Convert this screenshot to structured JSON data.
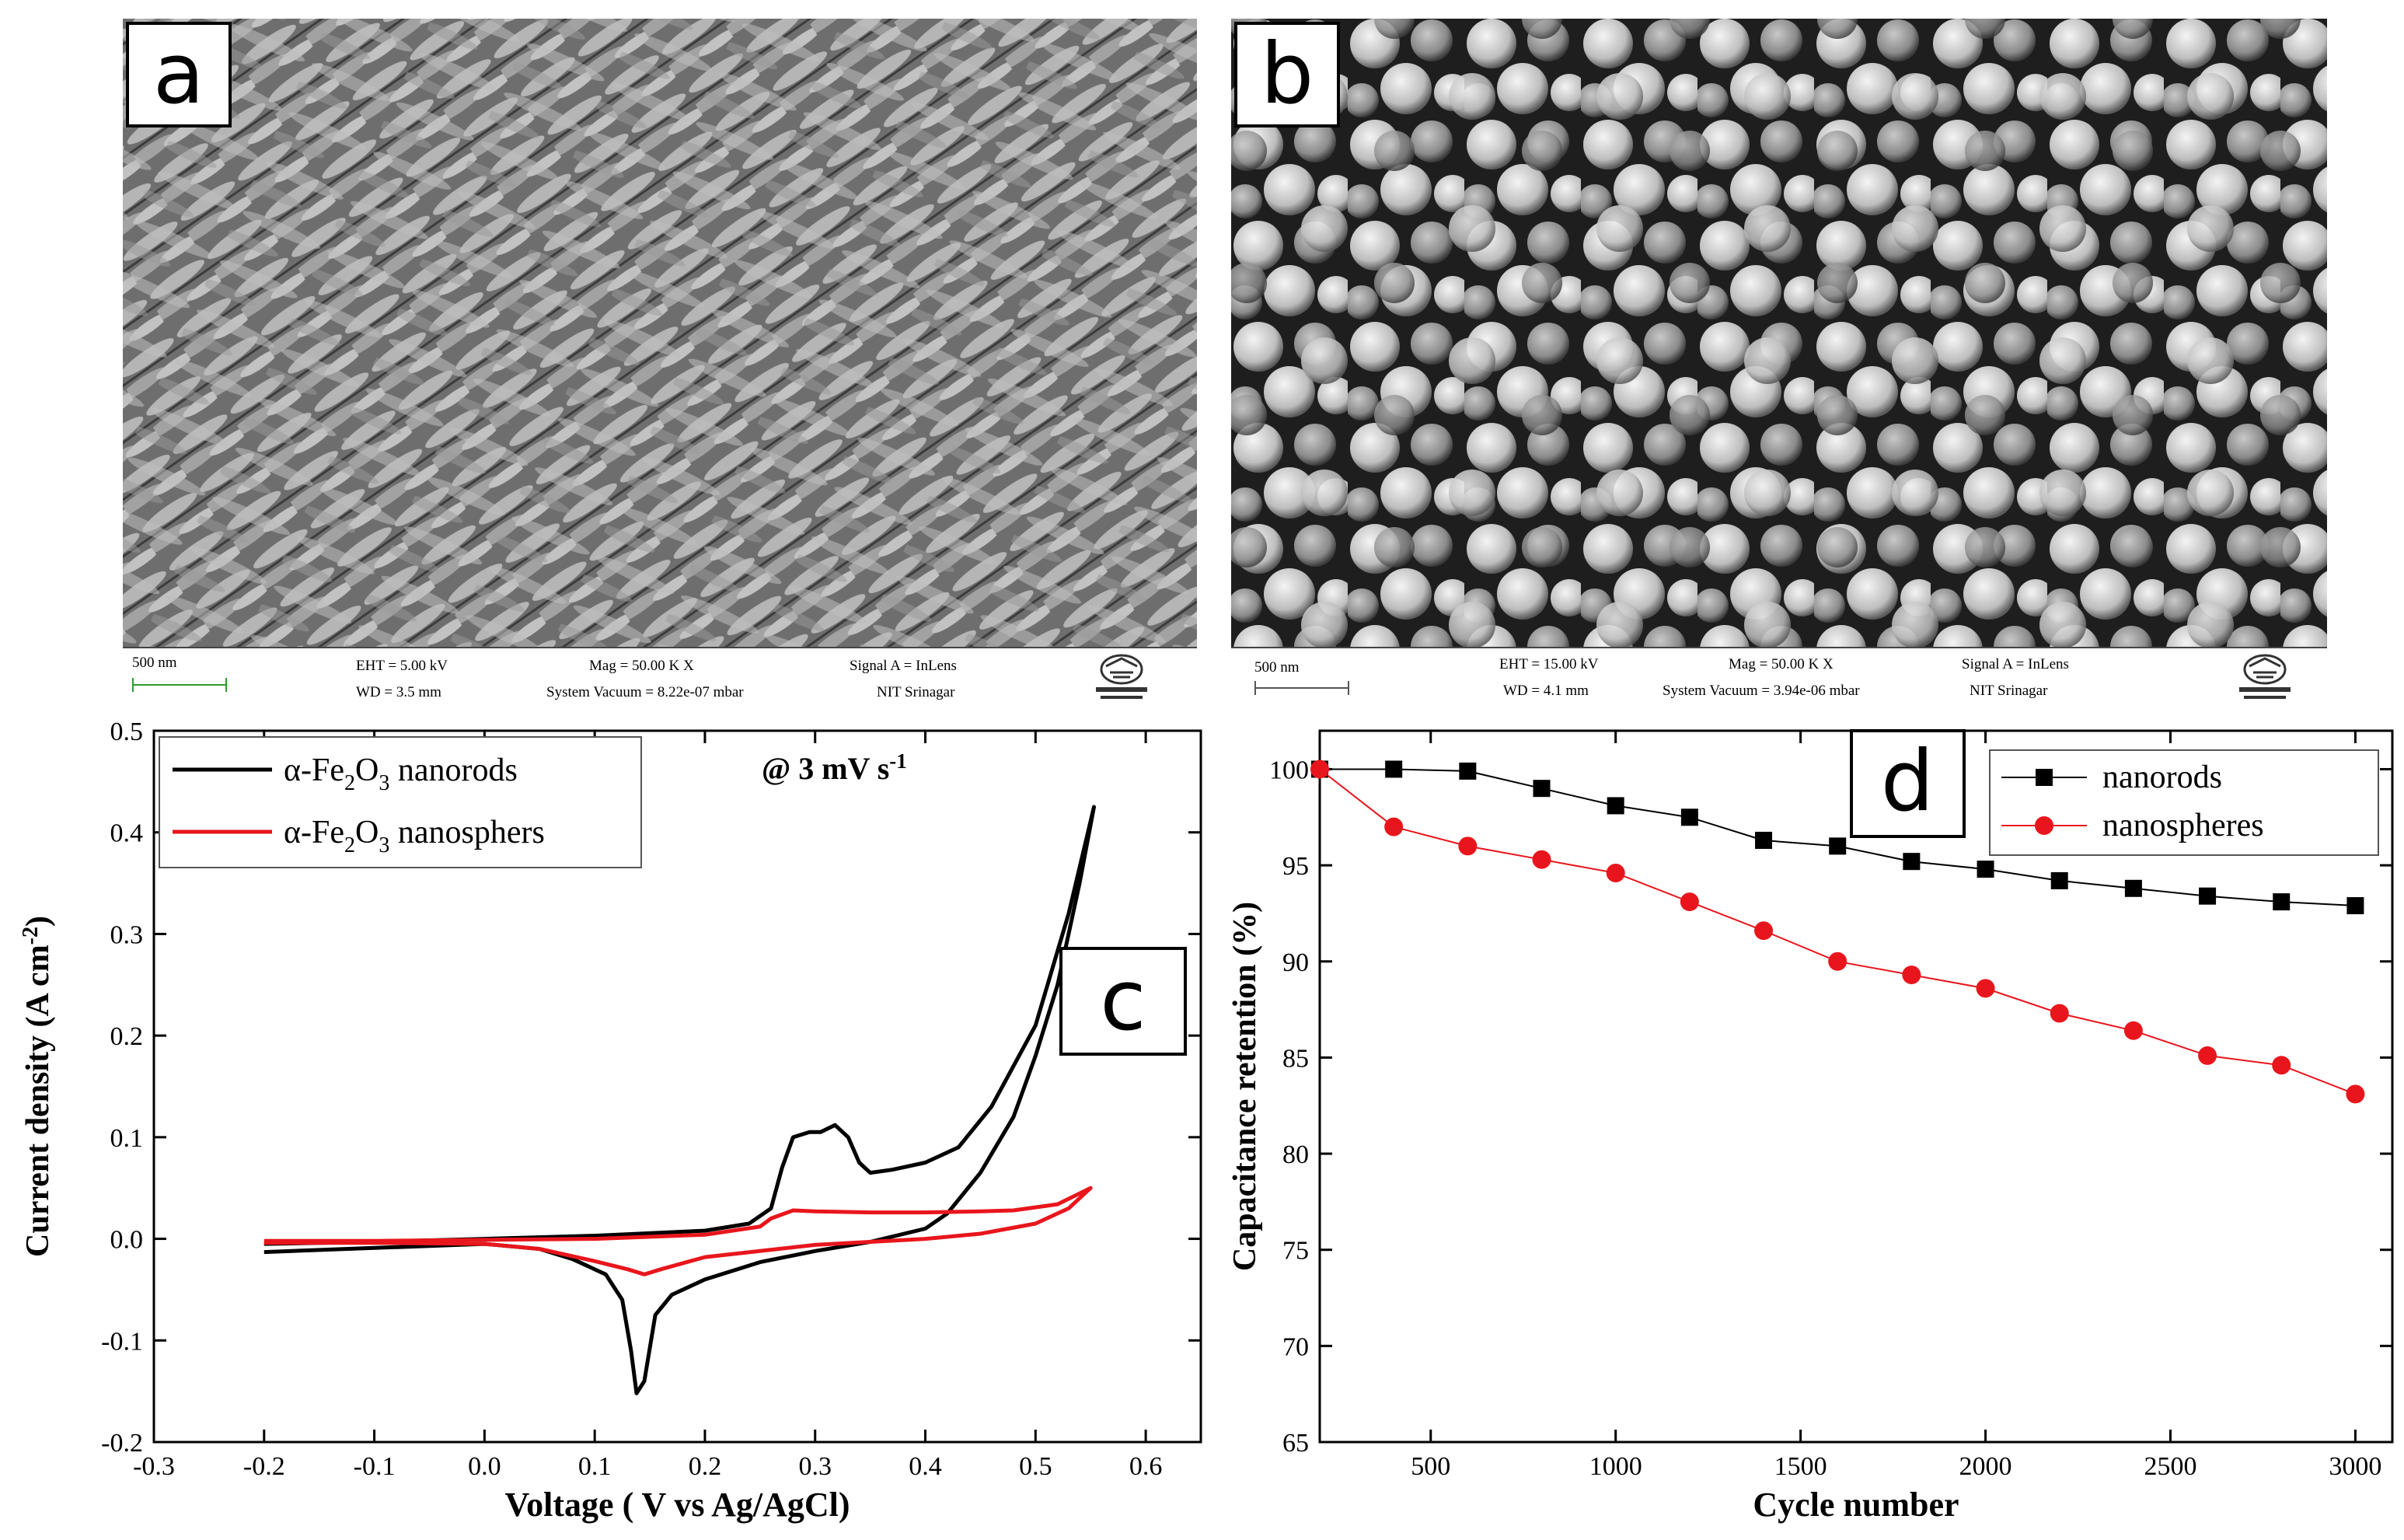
{
  "panels": {
    "a": {
      "label": "a",
      "sem_info": {
        "scale": "500 nm",
        "eht": "EHT =  5.00 kV",
        "wd": "WD =  3.5 mm",
        "mag": "Mag =   50.00 K X",
        "vacuum": "System Vacuum = 8.22e-07 mbar",
        "signal": "Signal A = InLens",
        "institute": "NIT Srinagar"
      }
    },
    "b": {
      "label": "b",
      "sem_info": {
        "scale": "500 nm",
        "eht": "EHT = 15.00 kV",
        "wd": "WD =  4.1 mm",
        "mag": "Mag =   50.00 K X",
        "vacuum": "System Vacuum = 3.94e-06 mbar",
        "signal": "Signal A = InLens",
        "institute": "NIT Srinagar"
      }
    },
    "c": {
      "label": "c",
      "annotation": "@ 3 mV s-1",
      "annotation_main": "@ 3 mV s",
      "annotation_sup": "-1"
    },
    "d": {
      "label": "d"
    }
  },
  "colors": {
    "black_series": "#000000",
    "red_series": "#e8161c"
  },
  "chart_data": [
    {
      "type": "line",
      "panel": "c",
      "xlabel": "Voltage ( V vs Ag/AgCl)",
      "ylabel": "Current density (A cm-2)",
      "ylabel_main": "Current density (A cm",
      "ylabel_sup": "-2",
      "ylabel_end": ")",
      "xlim": [
        -0.3,
        0.65
      ],
      "ylim": [
        -0.2,
        0.5
      ],
      "xticks": [
        -0.3,
        -0.2,
        -0.1,
        0.0,
        0.1,
        0.2,
        0.3,
        0.4,
        0.5,
        0.6
      ],
      "xtick_labels": [
        "-0.3",
        "-0.2",
        "-0.1",
        "0.0",
        "0.1",
        "0.2",
        "0.3",
        "0.4",
        "0.5",
        "0.6"
      ],
      "yticks": [
        -0.2,
        -0.1,
        0.0,
        0.1,
        0.2,
        0.3,
        0.4,
        0.5
      ],
      "ytick_labels": [
        "-0.2",
        "-0.1",
        "0.0",
        "0.1",
        "0.2",
        "0.3",
        "0.4",
        "0.5"
      ],
      "legend_position": "top-left",
      "series": [
        {
          "name": "α-Fe2O3 nanorods",
          "legend_pre": "α-Fe",
          "legend_sub1": "2",
          "legend_mid": "O",
          "legend_sub2": "3",
          "legend_post": " nanorods",
          "color": "#000000",
          "points": [
            [
              -0.2,
              -0.013
            ],
            [
              -0.1,
              -0.009
            ],
            [
              0.0,
              -0.005
            ],
            [
              0.05,
              -0.01
            ],
            [
              0.08,
              -0.02
            ],
            [
              0.11,
              -0.035
            ],
            [
              0.125,
              -0.06
            ],
            [
              0.133,
              -0.11
            ],
            [
              0.138,
              -0.152
            ],
            [
              0.145,
              -0.14
            ],
            [
              0.155,
              -0.075
            ],
            [
              0.17,
              -0.055
            ],
            [
              0.2,
              -0.04
            ],
            [
              0.25,
              -0.023
            ],
            [
              0.3,
              -0.012
            ],
            [
              0.35,
              -0.003
            ],
            [
              0.4,
              0.01
            ],
            [
              0.42,
              0.025
            ],
            [
              0.45,
              0.065
            ],
            [
              0.48,
              0.12
            ],
            [
              0.5,
              0.18
            ],
            [
              0.52,
              0.25
            ],
            [
              0.54,
              0.35
            ],
            [
              0.553,
              0.425
            ],
            [
              0.53,
              0.32
            ],
            [
              0.5,
              0.21
            ],
            [
              0.46,
              0.13
            ],
            [
              0.43,
              0.09
            ],
            [
              0.4,
              0.075
            ],
            [
              0.37,
              0.068
            ],
            [
              0.35,
              0.065
            ],
            [
              0.34,
              0.075
            ],
            [
              0.33,
              0.1
            ],
            [
              0.318,
              0.112
            ],
            [
              0.305,
              0.105
            ],
            [
              0.295,
              0.105
            ],
            [
              0.28,
              0.1
            ],
            [
              0.27,
              0.07
            ],
            [
              0.26,
              0.03
            ],
            [
              0.24,
              0.015
            ],
            [
              0.2,
              0.008
            ],
            [
              0.1,
              0.003
            ],
            [
              0.0,
              0.0
            ],
            [
              -0.1,
              -0.003
            ],
            [
              -0.2,
              -0.005
            ]
          ]
        },
        {
          "name": "α-Fe2O3 nanosphers",
          "legend_pre": "α-Fe",
          "legend_sub1": "2",
          "legend_mid": "O",
          "legend_sub2": "3",
          "legend_post": " nanosphers",
          "color": "#e8161c",
          "points": [
            [
              -0.2,
              -0.004
            ],
            [
              -0.1,
              -0.004
            ],
            [
              0.0,
              -0.005
            ],
            [
              0.05,
              -0.01
            ],
            [
              0.1,
              -0.022
            ],
            [
              0.13,
              -0.03
            ],
            [
              0.145,
              -0.035
            ],
            [
              0.16,
              -0.03
            ],
            [
              0.2,
              -0.018
            ],
            [
              0.3,
              -0.006
            ],
            [
              0.4,
              0.0
            ],
            [
              0.45,
              0.005
            ],
            [
              0.5,
              0.015
            ],
            [
              0.53,
              0.03
            ],
            [
              0.55,
              0.05
            ],
            [
              0.52,
              0.034
            ],
            [
              0.48,
              0.028
            ],
            [
              0.45,
              0.027
            ],
            [
              0.4,
              0.026
            ],
            [
              0.35,
              0.026
            ],
            [
              0.3,
              0.027
            ],
            [
              0.28,
              0.028
            ],
            [
              0.26,
              0.02
            ],
            [
              0.25,
              0.012
            ],
            [
              0.2,
              0.004
            ],
            [
              0.1,
              0.0
            ],
            [
              0.0,
              -0.001
            ],
            [
              -0.1,
              -0.002
            ],
            [
              -0.2,
              -0.002
            ]
          ]
        }
      ]
    },
    {
      "type": "line",
      "panel": "d",
      "xlabel": "Cycle number",
      "ylabel": "Capacitance retention (%)",
      "xlim": [
        200,
        3100
      ],
      "ylim": [
        65,
        102
      ],
      "xticks": [
        500,
        1000,
        1500,
        2000,
        2500,
        3000
      ],
      "xtick_labels": [
        "500",
        "1000",
        "1500",
        "2000",
        "2500",
        "3000"
      ],
      "yticks": [
        65,
        70,
        75,
        80,
        85,
        90,
        95,
        100
      ],
      "ytick_labels": [
        "65",
        "70",
        "75",
        "80",
        "85",
        "90",
        "95",
        "100"
      ],
      "legend_position": "top-right",
      "series": [
        {
          "name": "nanorods",
          "color": "#000000",
          "marker": "square",
          "x": [
            200,
            400,
            600,
            800,
            1000,
            1200,
            1400,
            1600,
            1800,
            2000,
            2200,
            2400,
            2600,
            2800,
            3000
          ],
          "y": [
            100,
            100,
            99.9,
            99.0,
            98.1,
            97.5,
            96.3,
            96.0,
            95.2,
            94.8,
            94.2,
            93.8,
            93.4,
            93.1,
            92.9
          ]
        },
        {
          "name": "nanospheres",
          "color": "#e8161c",
          "marker": "circle",
          "x": [
            200,
            400,
            600,
            800,
            1000,
            1200,
            1400,
            1600,
            1800,
            2000,
            2200,
            2400,
            2600,
            2800,
            3000
          ],
          "y": [
            100,
            97.0,
            96.0,
            95.3,
            94.6,
            93.1,
            91.6,
            90.0,
            89.3,
            88.6,
            87.3,
            86.4,
            85.1,
            84.6,
            83.1
          ]
        }
      ]
    }
  ]
}
